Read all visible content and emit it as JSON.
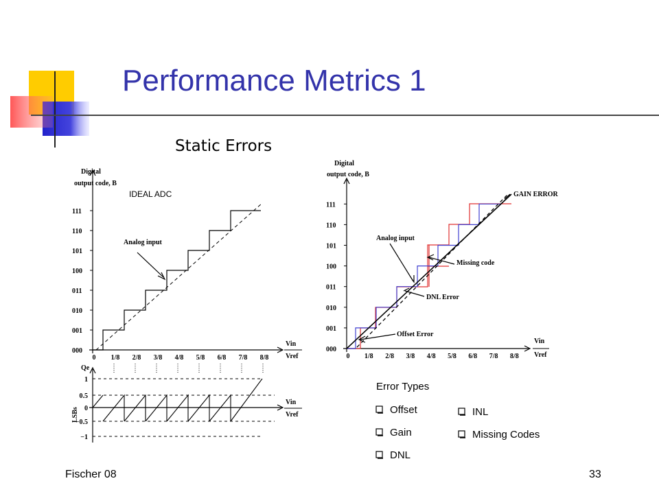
{
  "slide": {
    "title": "Performance Metrics 1",
    "subtitle": "Static Errors",
    "footer_left": "Fischer 08",
    "page_number": "33"
  },
  "ideal_adc": {
    "label": "IDEAL ADC",
    "y_title_line1": "Digital",
    "y_title_line2": "output code, B",
    "codes": [
      "000",
      "001",
      "010",
      "011",
      "100",
      "101",
      "110",
      "111"
    ],
    "x_ticks": [
      "0",
      "1/8",
      "2/8",
      "3/8",
      "4/8",
      "5/8",
      "6/8",
      "7/8",
      "8/8"
    ],
    "x_label_top": "Vin",
    "x_label_bottom": "Vref",
    "annotation": "Analog input"
  },
  "quantization_error": {
    "y_label": "Qe",
    "unit": "LSBs",
    "y_ticks": [
      "1",
      "0.5",
      "0",
      "−0.5",
      "−1"
    ],
    "x_label_top": "Vin",
    "x_label_bottom": "Vref"
  },
  "nonideal_adc": {
    "y_title_line1": "Digital",
    "y_title_line2": "output code, B",
    "codes": [
      "000",
      "001",
      "010",
      "011",
      "100",
      "101",
      "110",
      "111"
    ],
    "x_ticks": [
      "0",
      "1/8",
      "2/8",
      "3/8",
      "4/8",
      "5/8",
      "6/8",
      "7/8",
      "8/8"
    ],
    "x_label_top": "Vin",
    "x_label_bottom": "Vref",
    "annotations": {
      "gain": "GAIN ERROR",
      "analog": "Analog input",
      "missing": "Missing code",
      "dnl": "DNL Error",
      "offset": "Offset Error"
    }
  },
  "error_types": {
    "heading": "Error Types",
    "left": [
      "Offset",
      "Gain",
      "DNL"
    ],
    "right": [
      "INL",
      "Missing Codes"
    ]
  }
}
